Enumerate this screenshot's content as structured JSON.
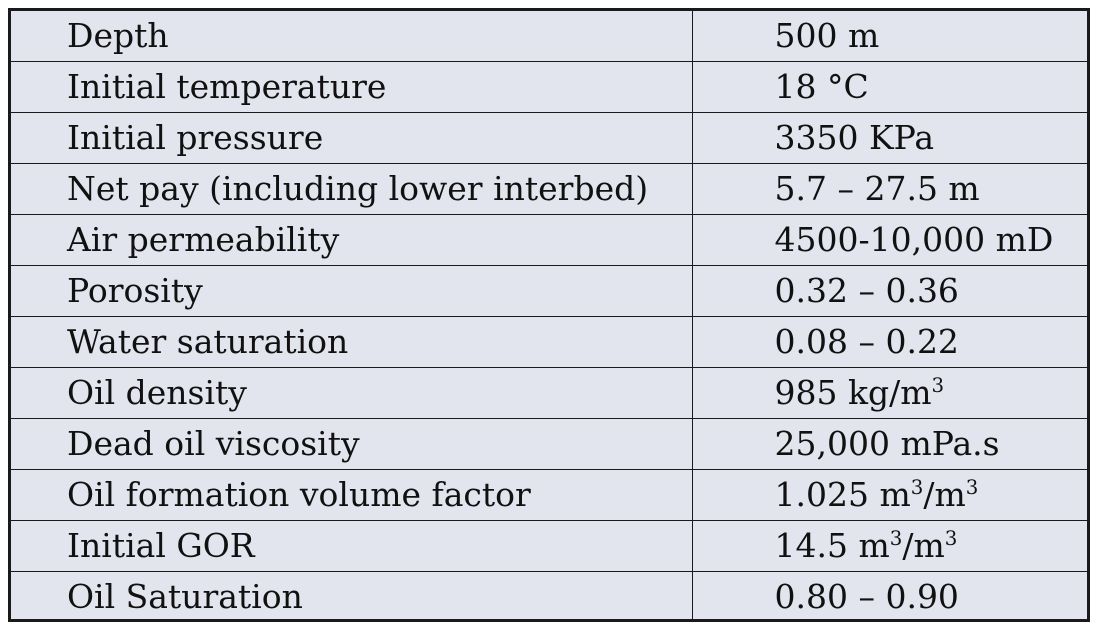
{
  "table": {
    "rows": [
      {
        "label": "Depth",
        "value": "500 m"
      },
      {
        "label": "Initial temperature",
        "value": "18 °C"
      },
      {
        "label": "Initial pressure",
        "value": "3350 KPa"
      },
      {
        "label": "Net pay (including lower interbed)",
        "value": "5.7 – 27.5 m"
      },
      {
        "label": "Air permeability",
        "value": "4500-10,000 mD"
      },
      {
        "label": "Porosity",
        "value": "0.32 – 0.36"
      },
      {
        "label": "Water saturation",
        "value": "0.08 – 0.22"
      },
      {
        "label": "Oil density",
        "value": "985 kg/m",
        "sup": "3"
      },
      {
        "label": "Dead oil viscosity",
        "value": "25,000 mPa.s"
      },
      {
        "label": "Oil formation volume factor",
        "value": "1.025 m",
        "sup": "3",
        "tail": "/m",
        "sup2": "3"
      },
      {
        "label": "Initial GOR",
        "value": "14.5 m",
        "sup": "3",
        "tail": "/m",
        "sup2": "3"
      },
      {
        "label": "Oil Saturation",
        "value": "0.80 – 0.90"
      }
    ]
  }
}
